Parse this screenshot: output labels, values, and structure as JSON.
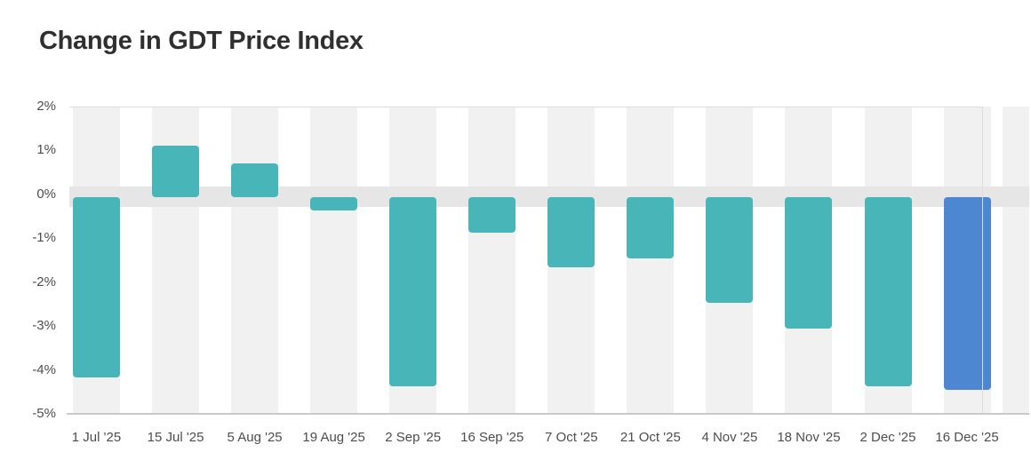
{
  "title": "Change in GDT Price Index",
  "chart_data": {
    "type": "bar",
    "title": "Change in GDT Price Index",
    "subtitle": "",
    "xlabel": "",
    "ylabel": "",
    "unit": "%",
    "categories": [
      "1 Jul '25",
      "15 Jul '25",
      "5 Aug '25",
      "19 Aug '25",
      "2 Sep '25",
      "16 Sep '25",
      "7 Oct '25",
      "21 Oct '25",
      "4 Nov '25",
      "18 Nov '25",
      "2 Dec '25",
      "16 Dec '25"
    ],
    "values": [
      -4.1,
      1.1,
      0.7,
      -0.3,
      -4.3,
      -0.8,
      -1.6,
      -1.4,
      -2.4,
      -3.0,
      -4.3,
      -4.4
    ],
    "highlight_index": 11,
    "ylim": [
      -5,
      2
    ],
    "ytick_values": [
      2,
      1,
      0,
      -1,
      -2,
      -3,
      -4,
      -5
    ],
    "ytick_labels": [
      "2%",
      "1%",
      "0%",
      "-1%",
      "-2%",
      "-3%",
      "-4%",
      "-5%"
    ],
    "grid": "horizontal top/bottom borders only; shaded zero band; alternating vertical column stripes",
    "legend": "none",
    "colors": {
      "bar_default": "#48b5b9",
      "bar_highlight": "#4d87d1",
      "column_stripe": "#f1f1f1",
      "zero_band": "#e6e6e6",
      "axis_line": "#c9c9c9",
      "grid_line": "#dcdcdc",
      "tick_label": "#4d4d4d",
      "title": "#303030",
      "background": "#ffffff"
    }
  }
}
